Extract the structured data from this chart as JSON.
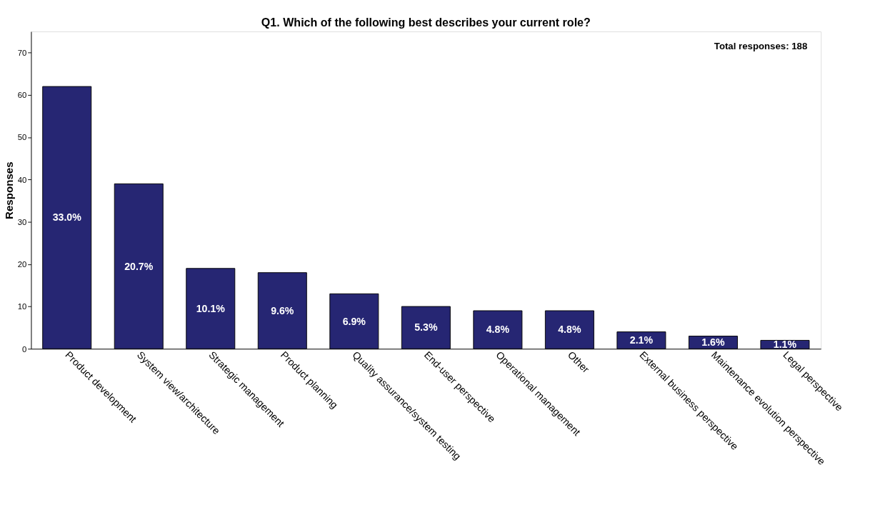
{
  "chart_data": {
    "type": "bar",
    "title": "Q1. Which of the following best describes your current role?",
    "ylabel": "Responses",
    "categories": [
      "Product development",
      "System view/architecture",
      "Strategic management",
      "Product planning",
      "Quality assurance/system testing",
      "End-user perspective",
      "Operational management",
      "Other",
      "External business perspective",
      "Maintenance evolution perspective",
      "Legal perspective"
    ],
    "values": [
      62,
      39,
      19,
      18,
      13,
      10,
      9,
      9,
      4,
      3,
      2
    ],
    "color": "#262673",
    "ylim": [
      0,
      75
    ],
    "yticks": [
      0,
      10,
      20,
      30,
      40,
      50,
      60,
      70
    ],
    "grid": false,
    "annotations": [
      "Total responses: 188",
      "33.0%",
      "20.7%",
      "10.1%",
      "9.6%",
      "6.9%",
      "5.3%",
      "4.8%",
      "4.8%",
      "2.1%",
      "1.6%",
      "1.1%"
    ]
  }
}
